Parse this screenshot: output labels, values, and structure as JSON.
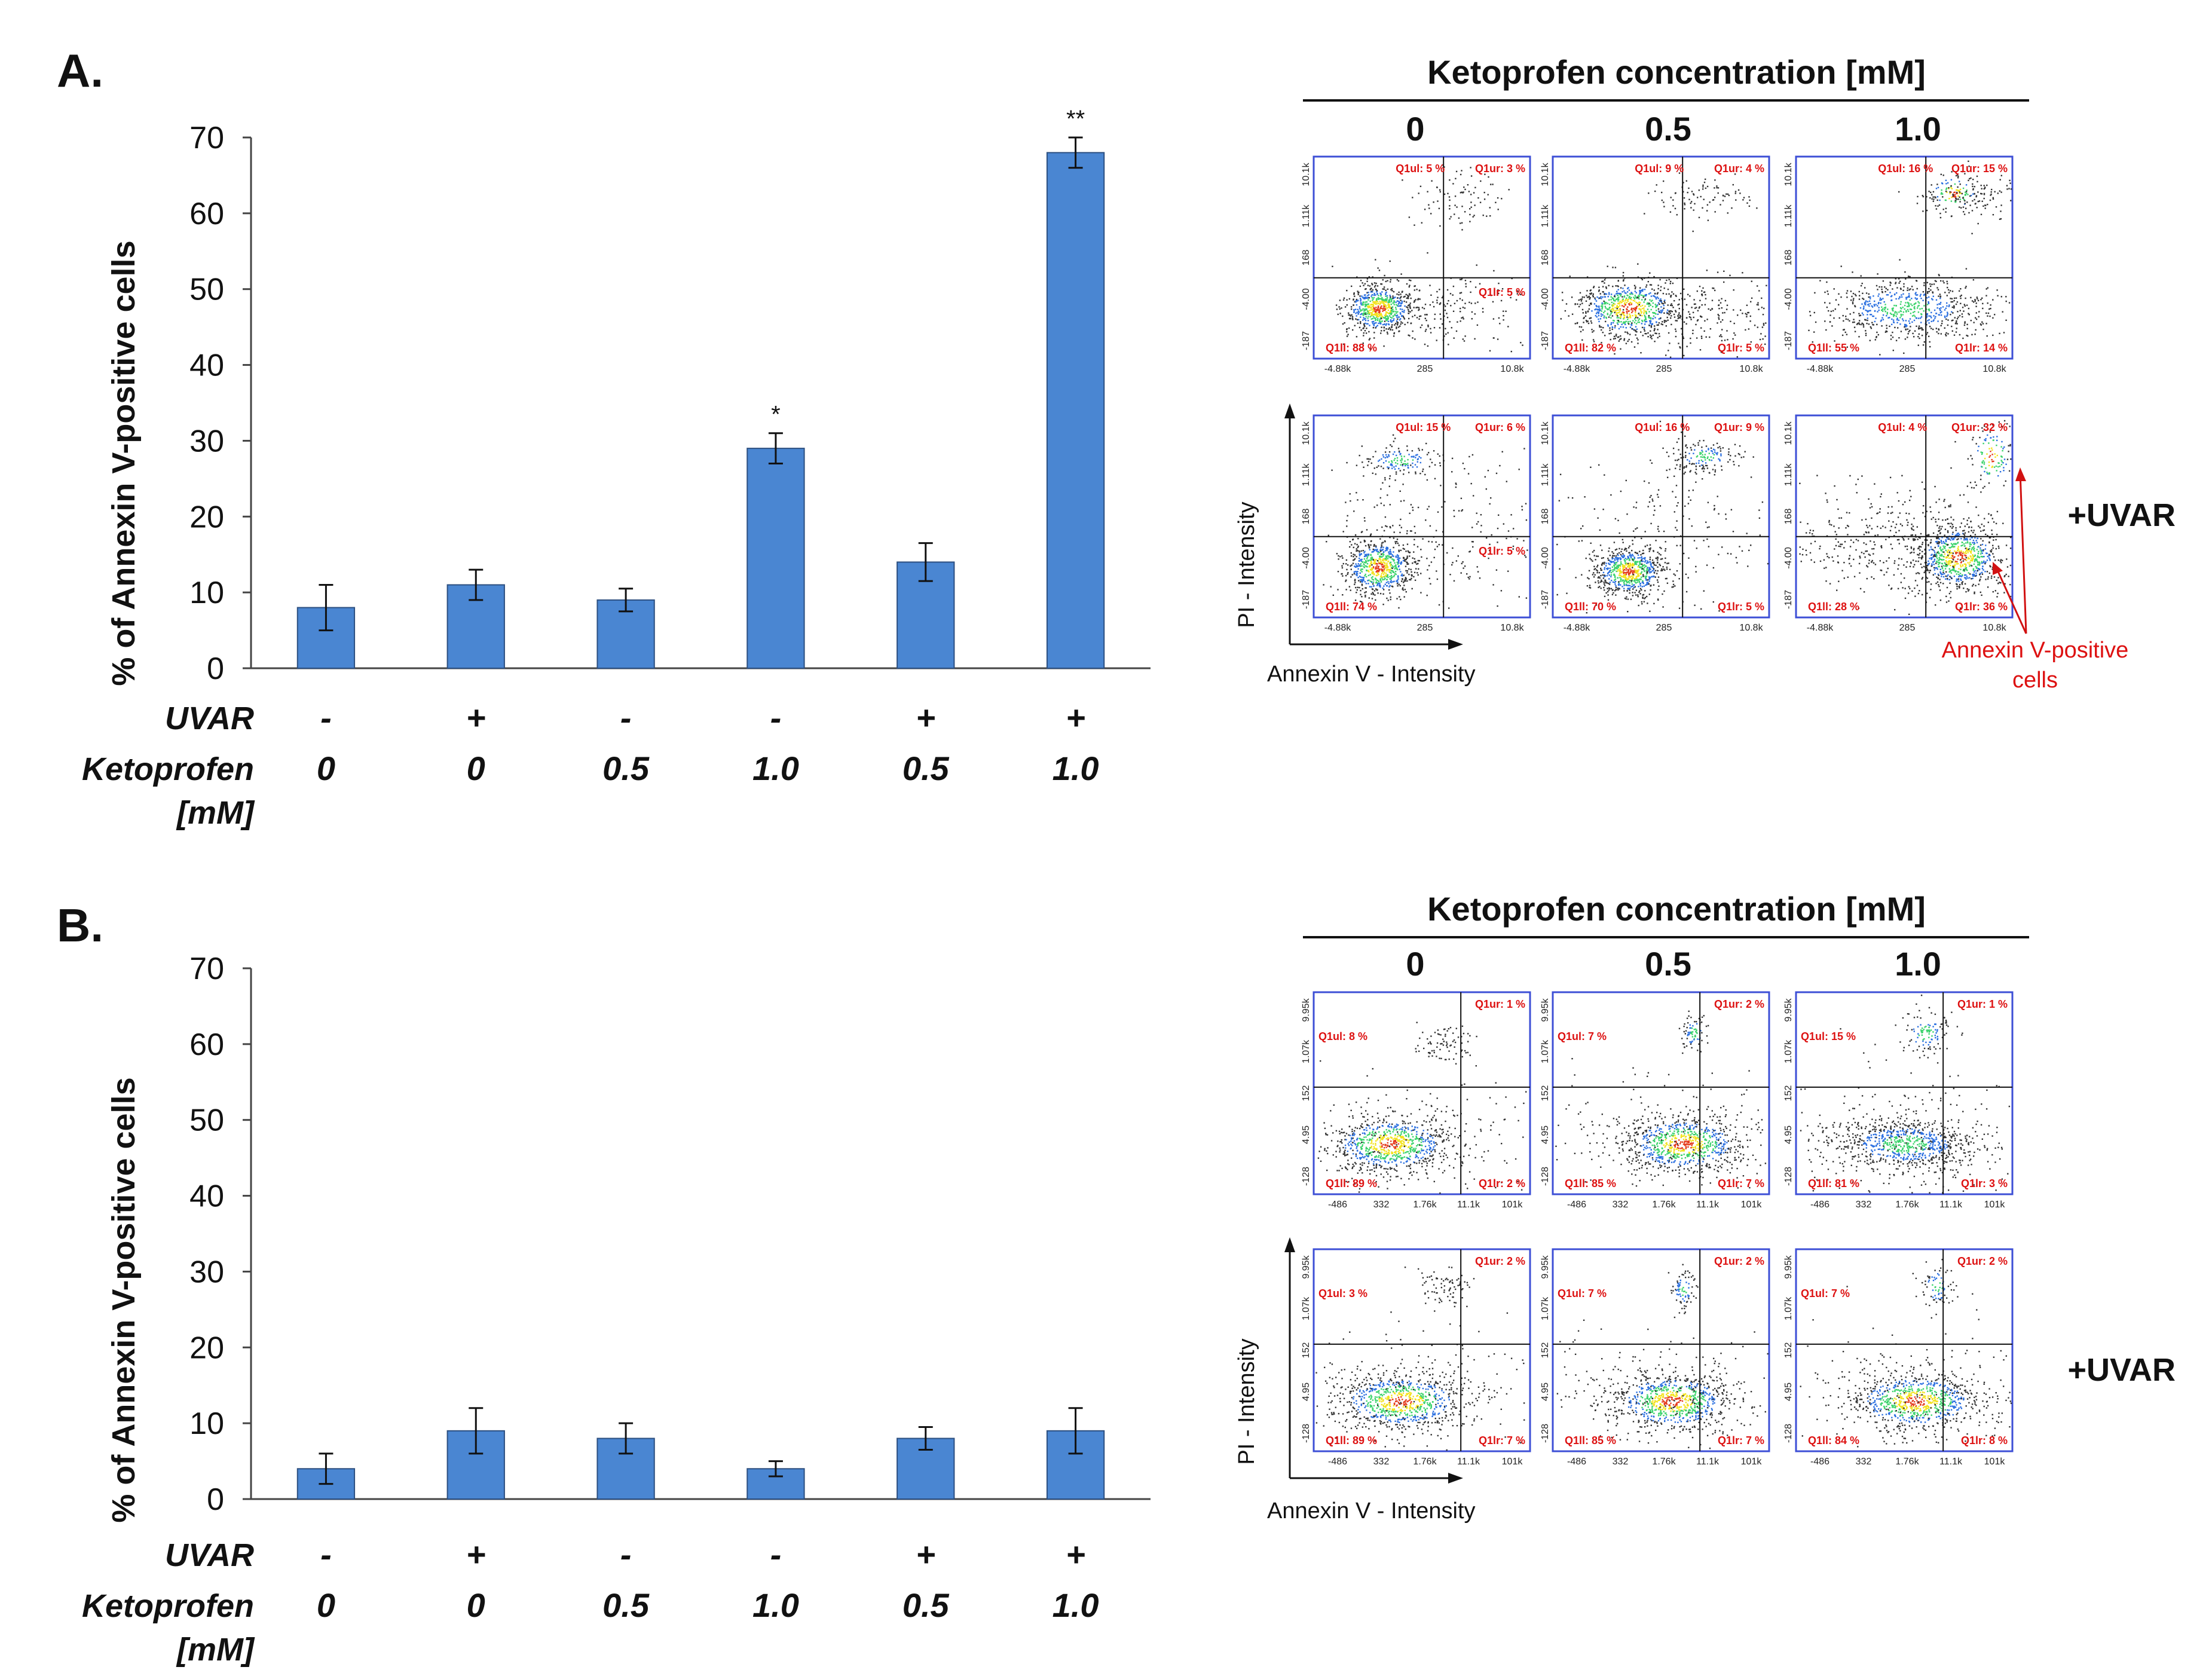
{
  "colors": {
    "bar": "#4a86d2",
    "bar_edge": "#2c4f80",
    "annotation": "#d11111",
    "plot_frame": "#3d4fd6"
  },
  "panels": [
    {
      "letter": "A.",
      "ylabel": "% of Annexin V-positive cells",
      "row_labels": {
        "uvar": "UVAR",
        "keto": "Ketoprofen",
        "keto_unit": "[mM]"
      },
      "uvar_values": [
        "-",
        "+",
        "-",
        "-",
        "+",
        "+"
      ],
      "keto_values": [
        "0",
        "0",
        "0.5",
        "1.0",
        "0.5",
        "1.0"
      ],
      "flow": {
        "title": "Ketoprofen concentration [mM]",
        "columns": [
          "0",
          "0.5",
          "1.0"
        ],
        "uvar_label": "+UVAR",
        "y_axis_title": "PI - Intensity",
        "x_axis_title": "Annexin V - Intensity",
        "x_ticks": [
          "-4.88k",
          "285",
          "10.8k"
        ],
        "y_ticks": [
          "10.1k",
          "1.11k",
          "168",
          "-4.00",
          "-187"
        ],
        "annotation": [
          "Annexin V-positive",
          "cells"
        ],
        "plots": [
          {
            "ul": "Q1ul: 5 %",
            "ur": "Q1ur: 3 %",
            "lr_in": "Q1lr: 5 %",
            "ll": "Q1ll: 88 %",
            "lr": ""
          },
          {
            "ul": "Q1ul: 9 %",
            "ur": "Q1ur: 4 %",
            "lr_in": "",
            "ll": "Q1ll: 82 %",
            "lr": "Q1lr: 5 %"
          },
          {
            "ul": "Q1ul: 16 %",
            "ur": "Q1ur: 15 %",
            "lr_in": "",
            "ll": "Q1ll: 55 %",
            "lr": "Q1lr: 14 %"
          },
          {
            "ul": "Q1ul: 15 %",
            "ur": "Q1ur: 6 %",
            "lr_in": "Q1lr: 5 %",
            "ll": "Q1ll: 74 %",
            "lr": ""
          },
          {
            "ul": "Q1ul: 16 %",
            "ur": "Q1ur: 9 %",
            "lr_in": "",
            "ll": "Q1ll: 70 %",
            "lr": "Q1lr: 5 %"
          },
          {
            "ul": "Q1ul: 4 %",
            "ur": "Q1ur: 32 %",
            "lr_in": "",
            "ll": "Q1ll: 28 %",
            "lr": "Q1lr: 36 %"
          }
        ]
      }
    },
    {
      "letter": "B.",
      "ylabel": "% of Annexin V-positive cells",
      "row_labels": {
        "uvar": "UVAR",
        "keto": "Ketoprofen",
        "keto_unit": "[mM]"
      },
      "uvar_values": [
        "-",
        "+",
        "-",
        "-",
        "+",
        "+"
      ],
      "keto_values": [
        "0",
        "0",
        "0.5",
        "1.0",
        "0.5",
        "1.0"
      ],
      "flow": {
        "title": "Ketoprofen concentration [mM]",
        "columns": [
          "0",
          "0.5",
          "1.0"
        ],
        "uvar_label": "+UVAR",
        "y_axis_title": "PI - Intensity",
        "x_axis_title": "Annexin V - Intensity",
        "x_ticks": [
          "-486",
          "332",
          "1.76k",
          "11.1k",
          "101k"
        ],
        "y_ticks": [
          "9.95k",
          "1.07k",
          "152",
          "4.95",
          "-128"
        ],
        "annotation": [],
        "plots": [
          {
            "ul": "Q1ul: 8 %",
            "ur": "Q1ur: 1 %",
            "lr_in": "",
            "ll": "Q1ll: 89 %",
            "lr": "Q1lr: 2 %"
          },
          {
            "ul": "Q1ul: 7 %",
            "ur": "Q1ur: 2 %",
            "lr_in": "",
            "ll": "Q1ll: 85 %",
            "lr": "Q1lr: 7 %"
          },
          {
            "ul": "Q1ul: 15 %",
            "ur": "Q1ur: 1 %",
            "lr_in": "",
            "ll": "Q1ll: 81 %",
            "lr": "Q1lr: 3 %"
          },
          {
            "ul": "Q1ul: 3 %",
            "ur": "Q1ur: 2 %",
            "lr_in": "",
            "ll": "Q1ll: 89 %",
            "lr": "Q1lr: 7 %"
          },
          {
            "ul": "Q1ul: 7 %",
            "ur": "Q1ur: 2 %",
            "lr_in": "",
            "ll": "Q1ll: 85 %",
            "lr": "Q1lr: 7 %"
          },
          {
            "ul": "Q1ul: 7 %",
            "ur": "Q1ur: 2 %",
            "lr_in": "",
            "ll": "Q1ll: 84 %",
            "lr": "Q1lr: 8 %"
          }
        ]
      }
    }
  ],
  "chart_data": [
    {
      "type": "bar",
      "title": "",
      "xlabel": "",
      "ylabel": "% of Annexin V-positive cells",
      "ylim": [
        0,
        70
      ],
      "yticks": [
        0,
        10,
        20,
        30,
        40,
        50,
        60,
        70
      ],
      "categories": [
        "- / 0",
        "+ / 0",
        "- / 0.5",
        "- / 1.0",
        "+ / 0.5",
        "+ / 1.0"
      ],
      "values": [
        8,
        11,
        9,
        29,
        14,
        68
      ],
      "errors": [
        3,
        2,
        1.5,
        2,
        2.5,
        2
      ],
      "significance": [
        "",
        "",
        "",
        "*",
        "",
        "**"
      ],
      "grid": false
    },
    {
      "type": "bar",
      "title": "",
      "xlabel": "",
      "ylabel": "% of Annexin V-positive cells",
      "ylim": [
        0,
        70
      ],
      "yticks": [
        0,
        10,
        20,
        30,
        40,
        50,
        60,
        70
      ],
      "categories": [
        "- / 0",
        "+ / 0",
        "- / 0.5",
        "- / 1.0",
        "+ / 0.5",
        "+ / 1.0"
      ],
      "values": [
        4,
        9,
        8,
        4,
        8,
        9
      ],
      "errors": [
        2,
        3,
        2,
        1,
        1.5,
        3
      ],
      "significance": [
        "",
        "",
        "",
        "",
        "",
        ""
      ],
      "grid": false
    }
  ]
}
